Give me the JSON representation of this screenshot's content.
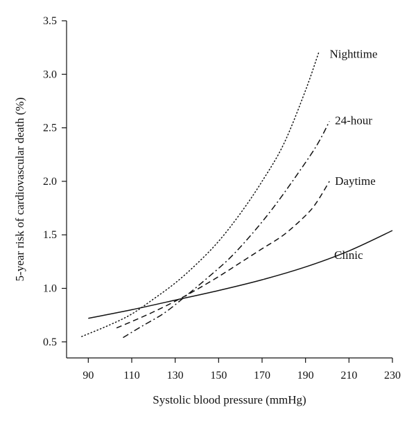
{
  "chart_data": {
    "type": "line",
    "title": "",
    "xlabel": "Systolic blood pressure (mmHg)",
    "ylabel": "5-year risk of cardiovascular death (%)",
    "xlim": [
      80,
      230
    ],
    "ylim": [
      0.35,
      3.5
    ],
    "xticks": [
      90,
      110,
      130,
      150,
      170,
      190,
      210,
      230
    ],
    "yticks": [
      0.5,
      1.0,
      1.5,
      2.0,
      2.5,
      3.0,
      3.5
    ],
    "ytick_labels": [
      "0.5",
      "1.0",
      "1.5",
      "2.0",
      "2.5",
      "3.0",
      "3.5"
    ],
    "grid": false,
    "legend": "none (series labelled directly at line ends)",
    "series": [
      {
        "name": "Nighttime",
        "style": "dotted",
        "x": [
          87,
          100,
          110,
          120,
          130,
          140,
          150,
          160,
          170,
          180,
          190,
          196
        ],
        "y": [
          0.55,
          0.66,
          0.76,
          0.9,
          1.05,
          1.23,
          1.44,
          1.7,
          2.0,
          2.35,
          2.85,
          3.2
        ]
      },
      {
        "name": "24-hour",
        "style": "dash-dot",
        "x": [
          106,
          115,
          125,
          135,
          145,
          155,
          165,
          175,
          185,
          195,
          201
        ],
        "y": [
          0.54,
          0.65,
          0.77,
          0.93,
          1.1,
          1.28,
          1.5,
          1.75,
          2.03,
          2.33,
          2.56
        ]
      },
      {
        "name": "Daytime",
        "style": "dashed",
        "x": [
          103,
          110,
          120,
          130,
          140,
          150,
          160,
          170,
          180,
          190,
          195,
          201
        ],
        "y": [
          0.63,
          0.69,
          0.78,
          0.88,
          0.99,
          1.11,
          1.24,
          1.37,
          1.5,
          1.68,
          1.8,
          2.0
        ]
      },
      {
        "name": "Clinic",
        "style": "solid",
        "x": [
          90,
          110,
          130,
          150,
          170,
          190,
          210,
          230
        ],
        "y": [
          0.72,
          0.8,
          0.89,
          0.98,
          1.08,
          1.2,
          1.35,
          1.54
        ]
      }
    ]
  }
}
